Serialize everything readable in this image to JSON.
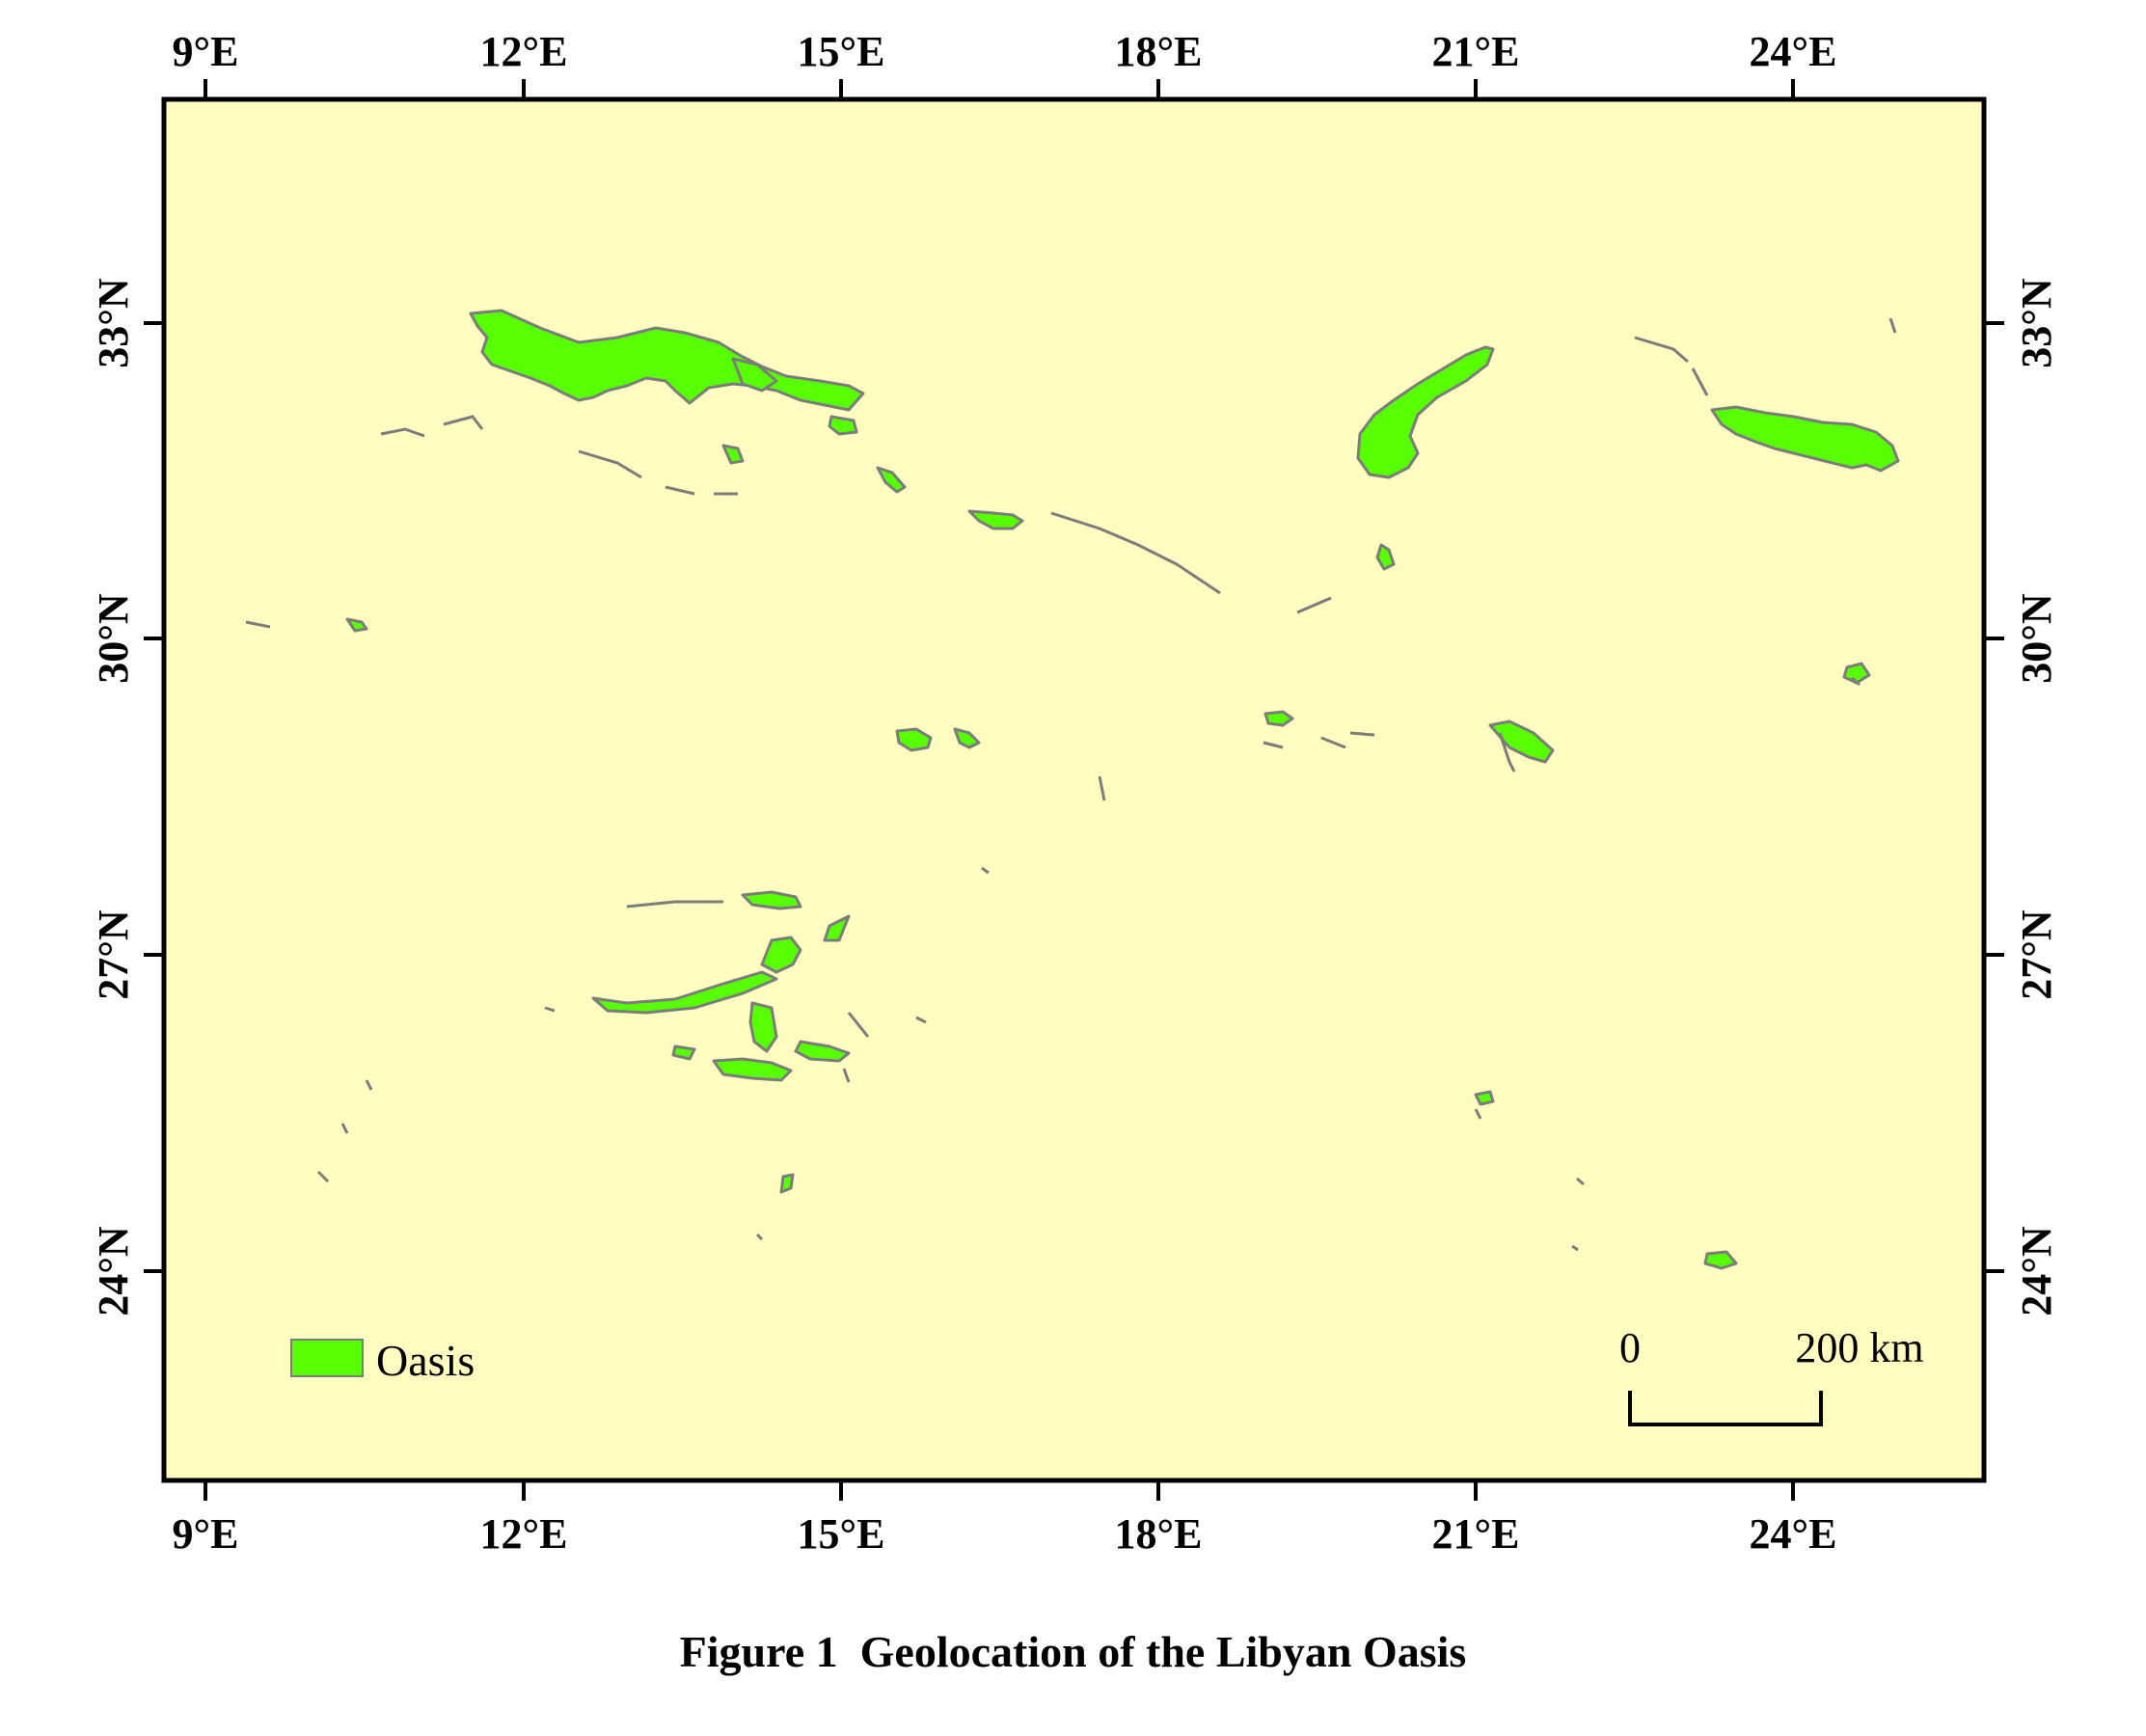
{
  "figure": {
    "caption": "Figure 1  Geolocation of the Libyan Oasis"
  },
  "map": {
    "background_color": "#FFFEC0",
    "oasis_fill_color": "#58FF00",
    "oasis_outline_color": "#7C7C7C",
    "top_axis_labels": [
      "9°E",
      "12°E",
      "15°E",
      "18°E",
      "21°E",
      "24°E"
    ],
    "bottom_axis_labels": [
      "9°E",
      "12°E",
      "15°E",
      "18°E",
      "21°E",
      "24°E"
    ],
    "left_axis_labels": [
      "33°N",
      "30°N",
      "27°N",
      "24°N"
    ],
    "right_axis_labels": [
      "33°N",
      "30°N",
      "27°N",
      "24°N"
    ]
  },
  "legend": {
    "items": [
      {
        "label": "Oasis",
        "color": "#58FF00"
      }
    ]
  },
  "scale_bar": {
    "start_label": "0",
    "end_label": "200 km"
  }
}
